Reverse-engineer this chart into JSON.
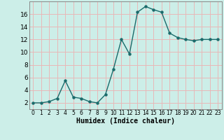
{
  "x": [
    0,
    1,
    2,
    3,
    4,
    5,
    6,
    7,
    8,
    9,
    10,
    11,
    12,
    13,
    14,
    15,
    16,
    17,
    18,
    19,
    20,
    21,
    22,
    23
  ],
  "y": [
    2.0,
    2.0,
    2.2,
    2.7,
    5.5,
    2.9,
    2.7,
    2.2,
    2.0,
    3.3,
    7.3,
    12.0,
    9.7,
    16.3,
    17.2,
    16.7,
    16.3,
    13.0,
    12.3,
    12.0,
    11.8,
    12.0,
    12.0,
    12.0
  ],
  "xlabel": "Humidex (Indice chaleur)",
  "bg_color": "#cceee8",
  "line_color": "#1a6b6b",
  "grid_color": "#e8b8b8",
  "yticks": [
    2,
    4,
    6,
    8,
    10,
    12,
    14,
    16
  ],
  "ylim": [
    1.0,
    18.0
  ],
  "xlim": [
    -0.5,
    23.5
  ],
  "xlabel_fontsize": 7,
  "tick_fontsize": 5.5,
  "ytick_fontsize": 6.5
}
